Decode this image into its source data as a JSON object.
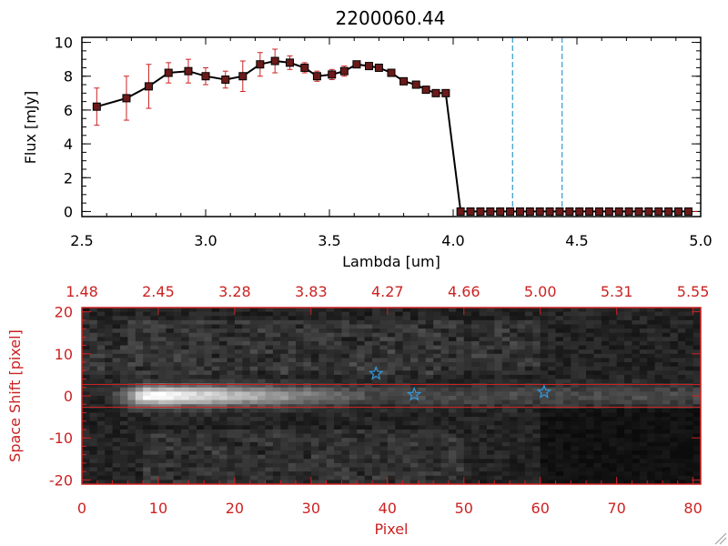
{
  "chart_data": [
    {
      "type": "line",
      "title": "2200060.44",
      "xlabel": "Lambda [um]",
      "ylabel": "Flux [mJy]",
      "xlim": [
        2.5,
        5.0
      ],
      "ylim": [
        -0.3,
        10.3
      ],
      "x_ticks": [
        2.5,
        3.0,
        3.5,
        4.0,
        4.5,
        5.0
      ],
      "x_tick_labels": [
        "2.5",
        "3.0",
        "3.5",
        "4.0",
        "4.5",
        "5.0"
      ],
      "y_ticks": [
        0,
        2,
        4,
        6,
        8,
        10
      ],
      "y_tick_labels": [
        "0",
        "2",
        "4",
        "6",
        "8",
        "10"
      ],
      "vlines": [
        4.24,
        4.44
      ],
      "colors": {
        "line": "#000000",
        "marker": "#6b1a1a",
        "errorbar": "#cc2222",
        "vline": "#3399cc"
      },
      "series": [
        {
          "name": "flux",
          "x": [
            2.56,
            2.68,
            2.77,
            2.85,
            2.93,
            3.0,
            3.08,
            3.15,
            3.22,
            3.28,
            3.34,
            3.4,
            3.45,
            3.51,
            3.56,
            3.61,
            3.66,
            3.7,
            3.75,
            3.8,
            3.85,
            3.89,
            3.93,
            3.97,
            4.03,
            4.07,
            4.11,
            4.15,
            4.19,
            4.23,
            4.27,
            4.31,
            4.35,
            4.39,
            4.43,
            4.47,
            4.51,
            4.55,
            4.59,
            4.63,
            4.67,
            4.71,
            4.75,
            4.79,
            4.83,
            4.87,
            4.91,
            4.95
          ],
          "y": [
            6.2,
            6.7,
            7.4,
            8.2,
            8.3,
            8.0,
            7.8,
            8.0,
            8.7,
            8.9,
            8.8,
            8.5,
            8.0,
            8.1,
            8.3,
            8.7,
            8.6,
            8.5,
            8.2,
            7.7,
            7.5,
            7.2,
            7.0,
            7.0,
            0,
            0,
            0,
            0,
            0,
            0,
            0,
            0,
            0,
            0,
            0,
            0,
            0,
            0,
            0,
            0,
            0,
            0,
            0,
            0,
            0,
            0,
            0,
            0
          ],
          "yerr": [
            1.1,
            1.3,
            1.3,
            0.6,
            0.7,
            0.5,
            0.5,
            0.9,
            0.7,
            0.7,
            0.4,
            0.3,
            0.3,
            0.3,
            0.3,
            0.2,
            0.2,
            0.2,
            0.2,
            0.2,
            0.2,
            0.2,
            0.2,
            0.2,
            0.05,
            0.05,
            0.05,
            0.05,
            0.05,
            0.05,
            0.05,
            0.05,
            0.05,
            0.05,
            0.05,
            0.05,
            0.05,
            0.05,
            0.05,
            0.05,
            0.05,
            0.05,
            0.05,
            0.05,
            0.05,
            0.05,
            0.05,
            0.05
          ]
        }
      ]
    },
    {
      "type": "heatmap",
      "xlabel": "Pixel",
      "ylabel": "Space Shift [pixel]",
      "xlim": [
        0,
        81
      ],
      "ylim": [
        -21,
        21
      ],
      "x_ticks": [
        0,
        10,
        20,
        30,
        40,
        50,
        60,
        70,
        80
      ],
      "x_tick_labels": [
        "0",
        "10",
        "20",
        "30",
        "40",
        "50",
        "60",
        "70",
        "80"
      ],
      "y_ticks": [
        -20,
        -10,
        0,
        10,
        20
      ],
      "y_tick_labels": [
        "-20",
        "-10",
        "0",
        "10",
        "20"
      ],
      "top_axis_ticks": [
        "1.48",
        "2.45",
        "3.28",
        "3.83",
        "4.27",
        "4.66",
        "5.00",
        "5.31",
        "5.55"
      ],
      "aperture_lines": [
        2.7,
        -2.7
      ],
      "star_markers": [
        {
          "x": 38.5,
          "y": 5.3
        },
        {
          "x": 43.5,
          "y": 0.3
        },
        {
          "x": 60.5,
          "y": 0.9
        }
      ],
      "colors": {
        "frame": "#cc2222",
        "star": "#3399dd"
      }
    }
  ]
}
